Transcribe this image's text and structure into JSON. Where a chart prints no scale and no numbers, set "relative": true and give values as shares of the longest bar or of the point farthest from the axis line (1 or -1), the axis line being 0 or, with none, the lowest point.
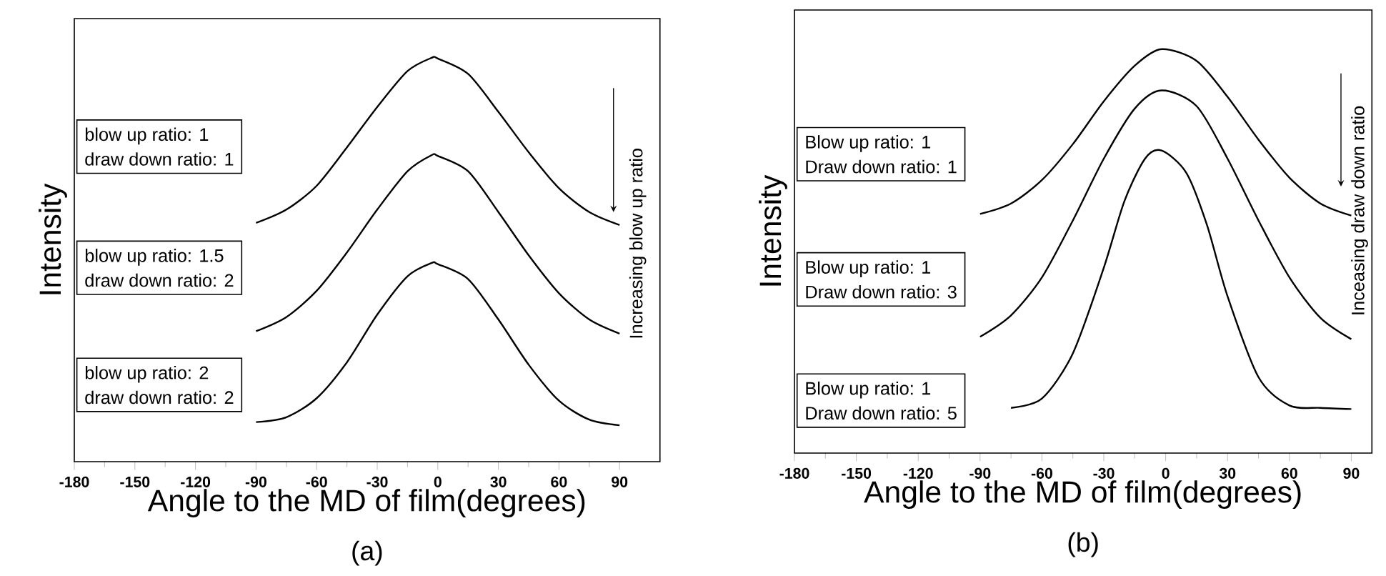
{
  "chart_data": [
    {
      "type": "line",
      "title": "(a)",
      "xlabel": "Angle to the MD of film(degrees)",
      "ylabel": "Intensity",
      "relative": true,
      "marker": "none",
      "xlim": [
        -180,
        110
      ],
      "xticks": [
        -180,
        -150,
        -120,
        -90,
        -60,
        -30,
        0,
        30,
        60,
        90
      ],
      "annotations": [
        "blow up ratio: 1",
        "draw down ratio: 1",
        "blow up ratio: 1.5",
        "draw down ratio: 2",
        "blow up ratio: 2",
        "draw down ratio: 2",
        "Increasing blow up ratio"
      ],
      "series": [
        {
          "color": "#000000",
          "x": [
            -90,
            -75,
            -60,
            -45,
            -30,
            -15,
            -3,
            0,
            15,
            30,
            45,
            60,
            75,
            90
          ],
          "values": [
            0.591,
            0.624,
            0.683,
            0.778,
            0.878,
            0.967,
            1.0,
            0.998,
            0.96,
            0.866,
            0.766,
            0.677,
            0.618,
            0.586
          ]
        },
        {
          "color": "#000000",
          "x": [
            -90,
            -75,
            -60,
            -45,
            -30,
            -15,
            -3,
            0,
            15,
            30,
            45,
            60,
            75,
            90
          ],
          "values": [
            0.323,
            0.358,
            0.423,
            0.518,
            0.624,
            0.719,
            0.759,
            0.757,
            0.719,
            0.618,
            0.511,
            0.417,
            0.352,
            0.317
          ]
        },
        {
          "color": "#000000",
          "x": [
            -90,
            -75,
            -60,
            -45,
            -30,
            -15,
            -3,
            0,
            15,
            30,
            45,
            60,
            75,
            90
          ],
          "values": [
            0.098,
            0.11,
            0.157,
            0.246,
            0.364,
            0.459,
            0.492,
            0.489,
            0.452,
            0.352,
            0.24,
            0.151,
            0.104,
            0.09
          ]
        }
      ]
    },
    {
      "type": "line",
      "title": "(b)",
      "xlabel": "Angle to the MD of film(degrees)",
      "ylabel": "Intensity",
      "relative": true,
      "marker": "none",
      "xlim": [
        -180,
        100
      ],
      "xticks": [
        -180,
        -150,
        -120,
        -90,
        -60,
        -30,
        0,
        30,
        60,
        90
      ],
      "annotations": [
        "Blow up ratio: 1",
        "Draw down ratio: 1",
        "Blow up ratio: 1",
        "Draw down ratio: 3",
        "Blow up ratio: 1",
        "Draw down ratio: 5",
        "Inceasing draw down ratio"
      ],
      "series": [
        {
          "color": "#000000",
          "x": [
            -90,
            -75,
            -60,
            -45,
            -30,
            -15,
            -2,
            15,
            30,
            45,
            60,
            75,
            90
          ],
          "values": [
            0.592,
            0.618,
            0.676,
            0.765,
            0.871,
            0.959,
            1.0,
            0.971,
            0.882,
            0.776,
            0.682,
            0.618,
            0.588
          ]
        },
        {
          "color": "#000000",
          "x": [
            -90,
            -75,
            -60,
            -45,
            -30,
            -15,
            -2,
            15,
            30,
            45,
            60,
            75,
            90
          ],
          "values": [
            0.288,
            0.341,
            0.435,
            0.576,
            0.729,
            0.853,
            0.898,
            0.859,
            0.729,
            0.576,
            0.435,
            0.335,
            0.282
          ]
        },
        {
          "color": "#000000",
          "x": [
            -75,
            -60,
            -45,
            -30,
            -20,
            -10,
            -2,
            10,
            20,
            30,
            45,
            60,
            75,
            90
          ],
          "values": [
            0.112,
            0.135,
            0.247,
            0.459,
            0.624,
            0.729,
            0.749,
            0.694,
            0.565,
            0.388,
            0.188,
            0.118,
            0.112,
            0.109
          ]
        }
      ]
    }
  ]
}
